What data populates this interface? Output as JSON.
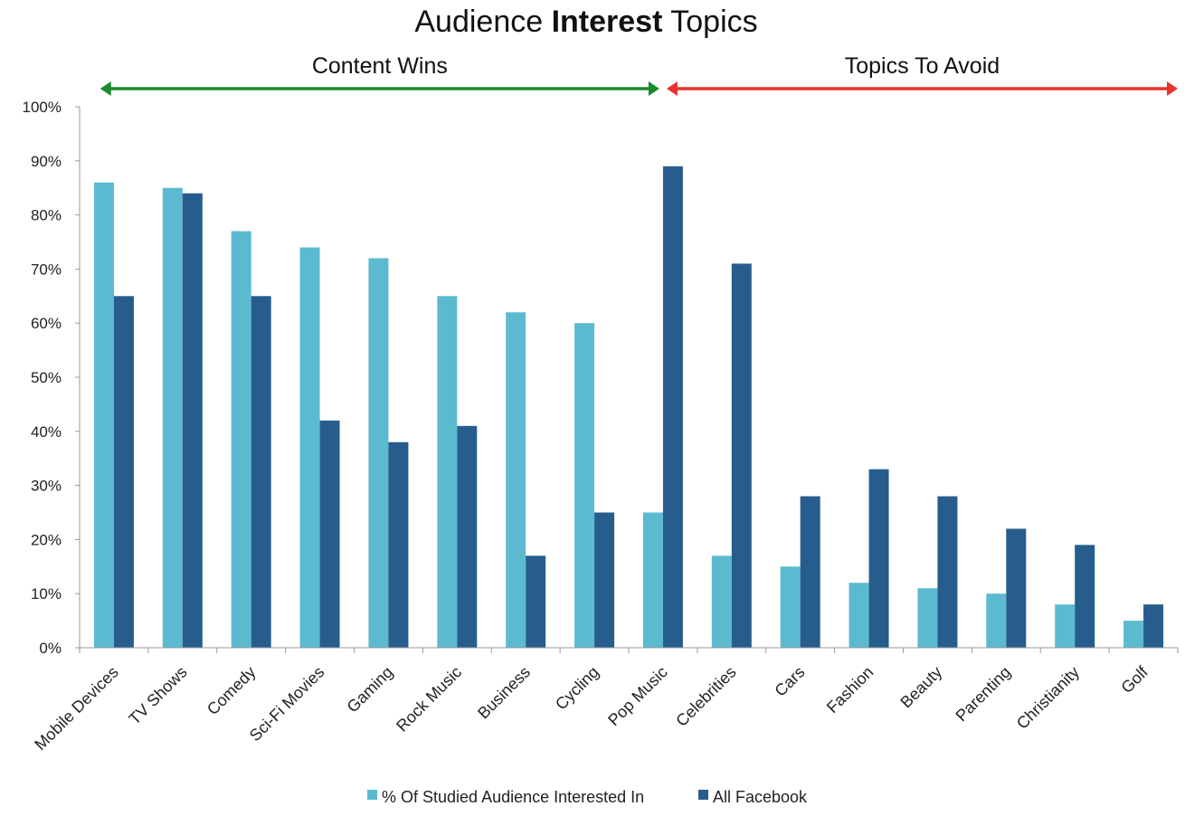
{
  "chart_data": {
    "type": "bar",
    "title_prefix": "Audience ",
    "title_bold": "Interest",
    "title_suffix": " Topics",
    "xlabel": "",
    "ylabel": "",
    "ylim": [
      0,
      100
    ],
    "y_ticks": [
      "0%",
      "10%",
      "20%",
      "30%",
      "40%",
      "50%",
      "60%",
      "70%",
      "80%",
      "90%",
      "100%"
    ],
    "grid": false,
    "legend_position": "bottom",
    "categories": [
      "Mobile Devices",
      "TV Shows",
      "Comedy",
      "Sci-Fi Movies",
      "Gaming",
      "Rock Music",
      "Business",
      "Cycling",
      "Pop Music",
      "Celebrities",
      "Cars",
      "Fashion",
      "Beauty",
      "Parenting",
      "Christianity",
      "Golf"
    ],
    "series": [
      {
        "name": "% Of Studied Audience Interested In",
        "color": "#5bbad0",
        "values": [
          86,
          85,
          77,
          74,
          72,
          65,
          62,
          60,
          25,
          17,
          15,
          12,
          11,
          10,
          8,
          5
        ]
      },
      {
        "name": "All Facebook",
        "color": "#275d8c",
        "values": [
          65,
          84,
          65,
          42,
          38,
          41,
          17,
          25,
          89,
          71,
          28,
          33,
          28,
          22,
          19,
          8
        ]
      }
    ],
    "annotations": [
      {
        "label": "Content Wins",
        "from_category": 0,
        "to_category": 8,
        "color": "#1a8a2a"
      },
      {
        "label": "Topics To Avoid",
        "from_category": 8,
        "to_category": 15,
        "color": "#e8322c"
      }
    ]
  }
}
